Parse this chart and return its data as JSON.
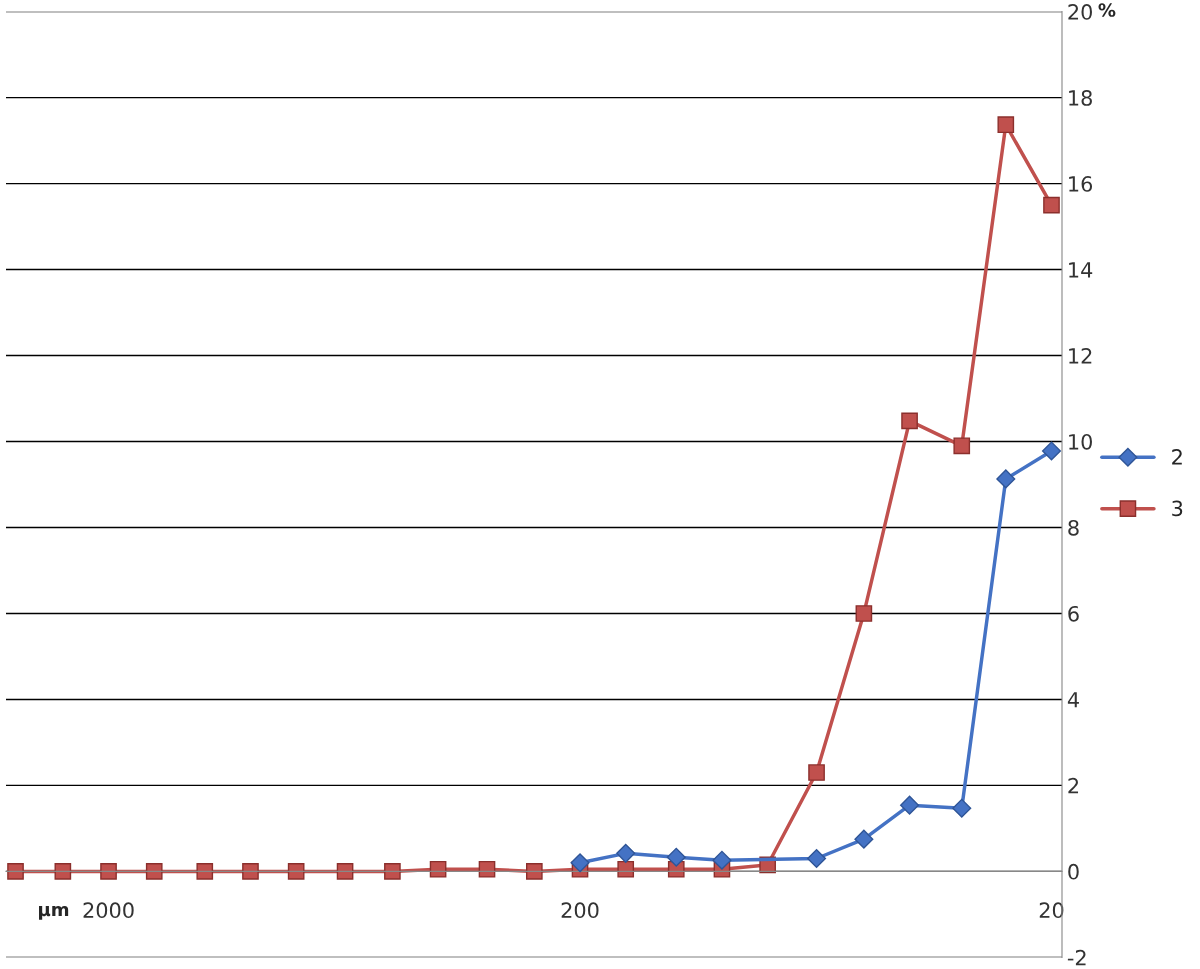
{
  "chart_data": {
    "type": "line",
    "xlabel": "μm",
    "ylabel": "%",
    "x": [
      3150,
      2500,
      2000,
      1600,
      1250,
      1000,
      800,
      630,
      500,
      400,
      315,
      250,
      200,
      160,
      125,
      100,
      80,
      63,
      50,
      40,
      31,
      25,
      20
    ],
    "series": [
      {
        "name": "2",
        "color": "#4472c4",
        "marker": "diamond",
        "values": [
          null,
          null,
          null,
          null,
          null,
          null,
          null,
          null,
          null,
          null,
          null,
          null,
          0.2,
          0.42,
          0.33,
          0.26,
          null,
          0.3,
          0.75,
          1.54,
          1.47,
          9.13,
          9.78
        ]
      },
      {
        "name": "3",
        "color": "#c0504d",
        "marker": "square",
        "values": [
          0,
          0,
          0,
          0,
          0,
          0,
          0,
          0,
          0,
          0.05,
          0.05,
          0,
          0.05,
          0.05,
          0.05,
          0.05,
          0.15,
          2.3,
          6.0,
          10.48,
          9.9,
          17.37,
          15.5
        ]
      }
    ],
    "log": "x",
    "xlim": [
      3300,
      19
    ],
    "xticks": [
      2000,
      200,
      20
    ],
    "ylim": [
      -2,
      20
    ],
    "yticks": [
      -2,
      0,
      2,
      4,
      6,
      8,
      10,
      12,
      14,
      16,
      18,
      20
    ],
    "grid": "y",
    "legend": "right",
    "line_style": "solid"
  }
}
